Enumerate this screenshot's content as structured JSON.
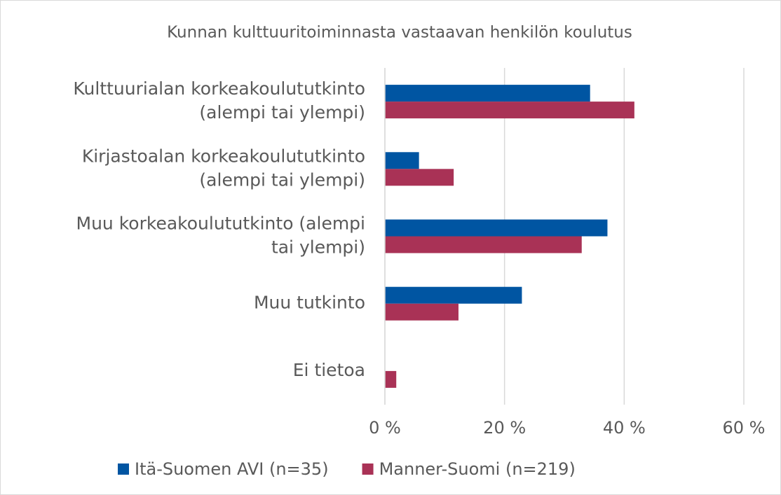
{
  "chart_data": {
    "type": "hbar",
    "title": "Kunnan kulttuuritoiminnasta vastaavan henkilön koulutus",
    "categories": [
      "Kulttuurialan korkeakoulututkinto\n(alempi tai ylempi)",
      "Kirjastoalan korkeakoulututkinto\n(alempi tai ylempi)",
      "Muu korkeakoulututkinto (alempi\ntai ylempi)",
      "Muu tutkinto",
      "Ei tietoa"
    ],
    "series": [
      {
        "name": "Itä-Suomen AVI (n=35)",
        "color": "#0055a2",
        "values": [
          34.3,
          5.7,
          37.2,
          22.9,
          0
        ]
      },
      {
        "name": "Manner-Suomi (n=219)",
        "color": "#a93256",
        "values": [
          41.7,
          11.5,
          32.9,
          12.3,
          1.9
        ]
      }
    ],
    "xlim": [
      0,
      60
    ],
    "xticks": [
      {
        "value": 0,
        "label": "0 %"
      },
      {
        "value": 20,
        "label": "20 %"
      },
      {
        "value": 40,
        "label": "40 %"
      },
      {
        "value": 60,
        "label": "60 %"
      }
    ],
    "grid": true,
    "legend": "bottom"
  }
}
